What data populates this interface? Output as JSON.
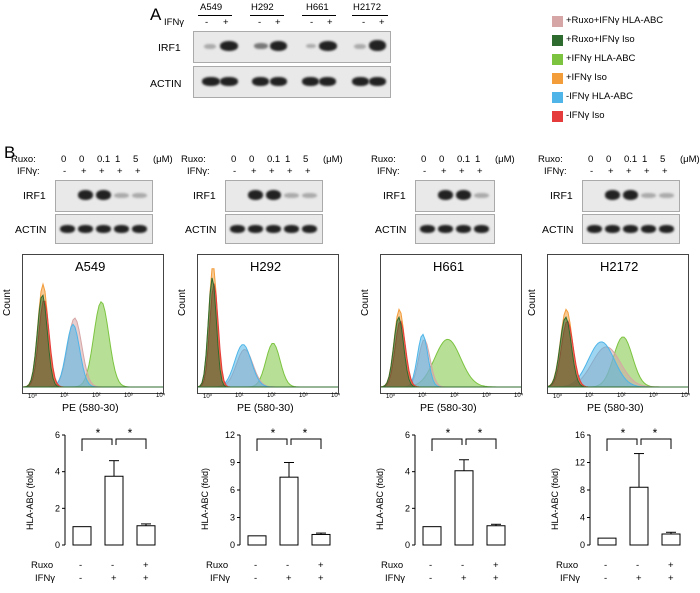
{
  "panelA": {
    "letter": "A",
    "cells": [
      "A549",
      "H292",
      "H661",
      "H2172"
    ],
    "treatment_label": "IFNγ",
    "signs": [
      "-",
      "+"
    ],
    "blots": [
      "IRF1",
      "ACTIN"
    ]
  },
  "legend": [
    {
      "label": "+Ruxo+IFNγ HLA-ABC",
      "color": "#d6a5a5"
    },
    {
      "label": "+Ruxo+IFNγ Iso",
      "color": "#2e6b2e"
    },
    {
      "label": "+IFNγ HLA-ABC",
      "color": "#7cc440"
    },
    {
      "label": "+IFNγ Iso",
      "color": "#f39c3a"
    },
    {
      "label": "-IFNγ HLA-ABC",
      "color": "#4fb5e8"
    },
    {
      "label": "-IFNγ Iso",
      "color": "#e63b3b"
    }
  ],
  "panelB": {
    "letter": "B",
    "ruxo_label": "Ruxo:",
    "ifn_label": "IFNγ:",
    "unit": "(μM)",
    "blots": [
      "IRF1",
      "ACTIN"
    ],
    "flow_ylabel": "Count",
    "flow_xlabel": "PE (580-30)",
    "flow_xticks": [
      "10⁰",
      "10¹",
      "10²",
      "10³",
      "10⁴"
    ],
    "bar_ylabel": "HLA-ABC (fold)",
    "bar_row_labels": [
      "Ruxo",
      "IFNγ"
    ],
    "bar_signs": {
      "ruxo": [
        "-",
        "-",
        "+"
      ],
      "ifn": [
        "-",
        "+",
        "+"
      ]
    },
    "sig": "*",
    "cells": [
      {
        "name": "A549",
        "doses": [
          "0",
          "0",
          "0.1",
          "1",
          "5"
        ],
        "ifn": [
          "-",
          "+",
          "+",
          "+",
          "+"
        ]
      },
      {
        "name": "H292",
        "doses": [
          "0",
          "0",
          "0.1",
          "1",
          "5"
        ],
        "ifn": [
          "-",
          "+",
          "+",
          "+",
          "+"
        ]
      },
      {
        "name": "H661",
        "doses": [
          "0",
          "0",
          "0.1",
          "1"
        ],
        "ifn": [
          "-",
          "+",
          "+",
          "+"
        ]
      },
      {
        "name": "H2172",
        "doses": [
          "0",
          "0",
          "0.1",
          "1",
          "5"
        ],
        "ifn": [
          "-",
          "+",
          "+",
          "+",
          "+"
        ]
      }
    ]
  },
  "chart_data": [
    {
      "type": "bar",
      "title": "A549",
      "categories": [
        "-/-",
        "IFNγ",
        "Ruxo+IFNγ"
      ],
      "values": [
        1.0,
        3.75,
        1.05
      ],
      "errors": [
        0,
        0.85,
        0.1
      ],
      "ylim": [
        0,
        6
      ],
      "yticks": [
        "0",
        "2",
        "4",
        "6"
      ],
      "ylabel": "HLA-ABC (fold)"
    },
    {
      "type": "bar",
      "title": "H292",
      "categories": [
        "-/-",
        "IFNγ",
        "Ruxo+IFNγ"
      ],
      "values": [
        1.0,
        7.4,
        1.15
      ],
      "errors": [
        0,
        1.6,
        0.15
      ],
      "ylim": [
        0,
        12
      ],
      "yticks": [
        "0",
        "3",
        "6",
        "9",
        "12"
      ],
      "ylabel": "HLA-ABC (fold)"
    },
    {
      "type": "bar",
      "title": "H661",
      "categories": [
        "-/-",
        "IFNγ",
        "Ruxo+IFNγ"
      ],
      "values": [
        1.0,
        4.05,
        1.05
      ],
      "errors": [
        0,
        0.6,
        0.08
      ],
      "ylim": [
        0,
        6
      ],
      "yticks": [
        "0",
        "2",
        "4",
        "6"
      ],
      "ylabel": "HLA-ABC (fold)"
    },
    {
      "type": "bar",
      "title": "H2172",
      "categories": [
        "-/-",
        "IFNγ",
        "Ruxo+IFNγ"
      ],
      "values": [
        1.0,
        8.4,
        1.6
      ],
      "errors": [
        0,
        4.9,
        0.25
      ],
      "ylim": [
        0,
        16
      ],
      "yticks": [
        "0",
        "4",
        "8",
        "12",
        "16"
      ],
      "ylabel": "HLA-ABC (fold)"
    }
  ]
}
